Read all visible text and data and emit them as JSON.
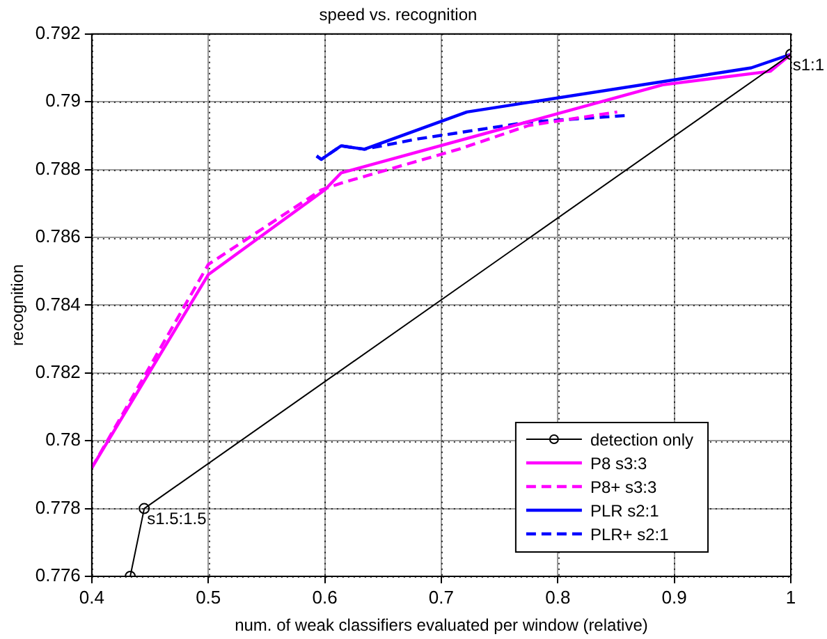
{
  "chart_data": {
    "type": "line",
    "title": "speed vs. recognition",
    "xlabel": "num. of weak classifiers evaluated per window (relative)",
    "ylabel": "recognition",
    "xlim": [
      0.4,
      1
    ],
    "xticks": [
      0.4,
      0.5,
      0.6,
      0.7,
      0.8,
      0.9,
      1
    ],
    "ylim": [
      0.776,
      0.792
    ],
    "yticks": [
      0.776,
      0.778,
      0.78,
      0.782,
      0.784,
      0.786,
      0.788,
      0.79,
      0.792
    ],
    "grid": true,
    "legend": "bottom right",
    "series": [
      {
        "name": "detection only",
        "color": "#000000",
        "marker": "circle",
        "line_style": "solid",
        "x": [
          0.433,
          0.445,
          1.0
        ],
        "values": [
          0.776,
          0.778,
          0.7914
        ]
      },
      {
        "name": "P8 s3:3",
        "color": "#ff00ff",
        "line_style": "solid",
        "x": [
          0.4,
          0.5,
          0.6,
          0.614,
          0.89,
          0.9825,
          1.0
        ],
        "values": [
          0.7792,
          0.7849,
          0.7874,
          0.7879,
          0.7905,
          0.7909,
          0.7914
        ]
      },
      {
        "name": "P8+ s3:3",
        "color": "#ff00ff",
        "line_style": "dashed",
        "x": [
          0.4,
          0.5,
          0.597,
          0.614,
          0.715,
          0.775,
          0.851
        ],
        "values": [
          0.7792,
          0.7852,
          0.7874,
          0.7876,
          0.7886,
          0.7893,
          0.7897
        ]
      },
      {
        "name": "PLR s2:1",
        "color": "#0000ff",
        "line_style": "solid",
        "x": [
          0.593,
          0.597,
          0.614,
          0.634,
          0.722,
          0.966,
          1.0
        ],
        "values": [
          0.7884,
          0.7883,
          0.7887,
          0.7886,
          0.7897,
          0.791,
          0.7914
        ]
      },
      {
        "name": "PLR+ s2:1",
        "color": "#0000ff",
        "line_style": "dashed",
        "x": [
          0.593,
          0.597,
          0.614,
          0.634,
          0.679,
          0.775,
          0.861
        ],
        "values": [
          0.7884,
          0.7883,
          0.7887,
          0.7886,
          0.7889,
          0.7894,
          0.7896
        ]
      }
    ],
    "annotations": [
      {
        "text": "s1:1",
        "x": 1.0,
        "y": 0.7914
      },
      {
        "text": "s1.5:1.5",
        "x": 0.445,
        "y": 0.778
      }
    ]
  }
}
